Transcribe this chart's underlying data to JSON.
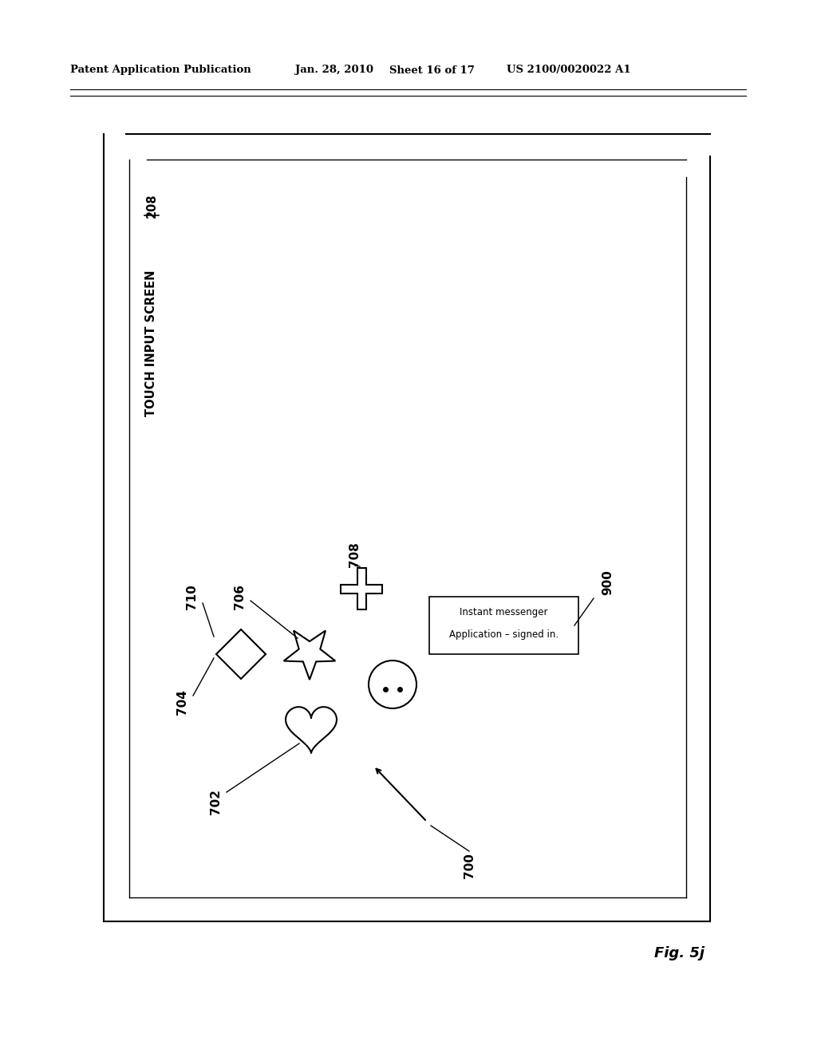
{
  "bg_color": "#ffffff",
  "header_text": "Patent Application Publication",
  "header_date": "Jan. 28, 2010",
  "header_sheet": "Sheet 16 of 17",
  "header_patent": "US 2100/0020022 A1",
  "fig_label": "Fig. 5j",
  "screen_label": "TOUCH INPUT SCREEN",
  "screen_label_num": "208",
  "label_700": "700",
  "label_702": "702",
  "label_704": "704",
  "label_706": "706",
  "label_708": "708",
  "label_710": "710",
  "label_900": "900",
  "tooltip_line1": "Instant messenger",
  "tooltip_line2": "Application – signed in."
}
